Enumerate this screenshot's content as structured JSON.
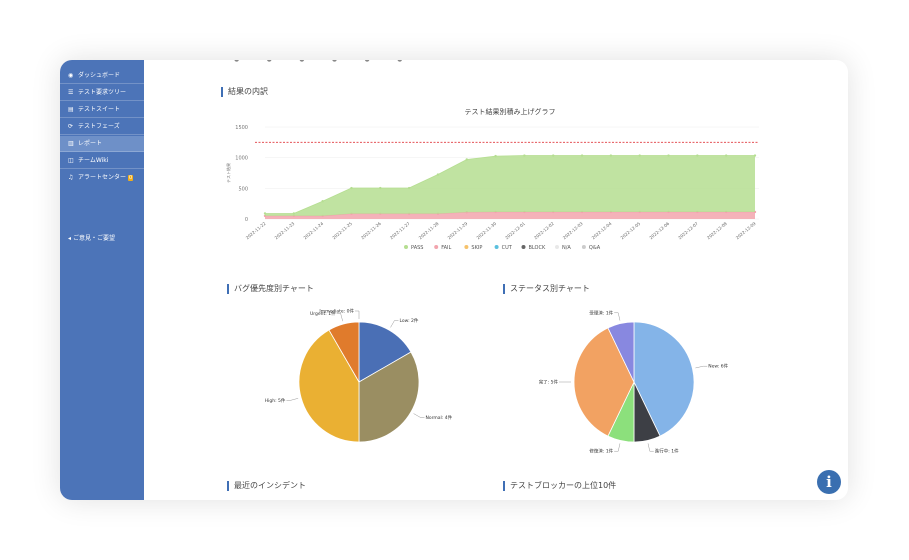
{
  "sidebar": {
    "items": [
      {
        "icon": "dashboard-icon",
        "glyph": "◉",
        "label": "ダッシュボード"
      },
      {
        "icon": "list-icon",
        "glyph": "☰",
        "label": "テスト要求ツリー"
      },
      {
        "icon": "document-icon",
        "glyph": "▤",
        "label": "テストスイート"
      },
      {
        "icon": "cycle-icon",
        "glyph": "⟳",
        "label": "テストフェーズ"
      },
      {
        "icon": "chart-icon",
        "glyph": "▥",
        "label": "レポート"
      },
      {
        "icon": "wiki-icon",
        "glyph": "◫",
        "label": "チームWiki"
      },
      {
        "icon": "alert-icon",
        "glyph": "♫",
        "label": "アラートセンター",
        "badge": "0"
      }
    ],
    "feedback": {
      "icon": "megaphone-icon",
      "glyph": "◂",
      "label": "ご意見・ご要望"
    }
  },
  "sections": {
    "results": "結果の内訳",
    "bug_priority": "バグ優先度別チャート",
    "status": "ステータス別チャート",
    "incidents": "最近のインシデント",
    "blockers": "テストブロッカーの上位10件"
  },
  "info_button": {
    "glyph": "i"
  },
  "colors": {
    "sidebar": "#4c74b8",
    "accent": "#3f6fb5",
    "pass": "#b5de91",
    "fail": "#f2a4ad",
    "target_line": "#e0393e"
  },
  "chart_data": [
    {
      "type": "area",
      "title": "テスト結果別積み上げグラフ",
      "ylabel": "テスト結果",
      "ylim": [
        0,
        1500
      ],
      "yticks": [
        "0",
        "500",
        "1000",
        "1500"
      ],
      "target_line": 1250,
      "x": [
        "2022-11-22",
        "2022-11-23",
        "2022-11-24",
        "2022-11-25",
        "2022-11-26",
        "2022-11-27",
        "2022-11-28",
        "2022-11-29",
        "2022-11-30",
        "2022-12-01",
        "2022-12-02",
        "2022-12-03",
        "2022-12-04",
        "2022-12-05",
        "2022-12-06",
        "2022-12-07",
        "2022-12-08",
        "2022-12-09"
      ],
      "series": [
        {
          "name": "PASS",
          "color": "#b5de91",
          "values": [
            40,
            40,
            240,
            420,
            420,
            420,
            640,
            860,
            910,
            920,
            920,
            920,
            920,
            920,
            920,
            920,
            920,
            920
          ]
        },
        {
          "name": "FAIL",
          "color": "#f2a4ad",
          "values": [
            50,
            50,
            50,
            85,
            85,
            85,
            85,
            110,
            115,
            115,
            115,
            115,
            115,
            115,
            115,
            115,
            115,
            115
          ]
        },
        {
          "name": "SKIP",
          "color": "#f6c26b",
          "values": [
            0,
            0,
            0,
            0,
            0,
            0,
            0,
            0,
            0,
            0,
            0,
            0,
            0,
            0,
            0,
            0,
            0,
            0
          ]
        },
        {
          "name": "CUT",
          "color": "#5bc0de",
          "values": [
            0,
            0,
            0,
            0,
            0,
            0,
            0,
            0,
            0,
            0,
            0,
            0,
            0,
            0,
            0,
            0,
            0,
            0
          ]
        },
        {
          "name": "BLOCK",
          "color": "#666666",
          "values": [
            0,
            0,
            0,
            0,
            0,
            0,
            0,
            0,
            0,
            0,
            0,
            0,
            0,
            0,
            0,
            0,
            0,
            0
          ]
        },
        {
          "name": "N/A",
          "color": "#e8e8e8",
          "values": [
            0,
            0,
            0,
            0,
            0,
            0,
            0,
            0,
            0,
            0,
            0,
            0,
            0,
            0,
            0,
            0,
            0,
            0
          ]
        },
        {
          "name": "Q&A",
          "color": "#cccccc",
          "values": [
            0,
            0,
            0,
            0,
            0,
            0,
            0,
            0,
            0,
            0,
            0,
            0,
            0,
            0,
            0,
            0,
            0,
            0
          ]
        }
      ]
    },
    {
      "type": "pie",
      "slices": [
        {
          "label": "Low: 2件",
          "value": 2,
          "color": "#4a6fb5"
        },
        {
          "label": "Normal: 4件",
          "value": 4,
          "color": "#9a8e62"
        },
        {
          "label": "High: 5件",
          "value": 5,
          "color": "#eab033"
        },
        {
          "label": "Urgent: 1件",
          "value": 1,
          "color": "#e07b2c"
        },
        {
          "label": "Immediate: 0件",
          "value": 0,
          "color": "#c0392b"
        }
      ]
    },
    {
      "type": "pie",
      "slices": [
        {
          "label": "New: 6件",
          "value": 6,
          "color": "#84b4e8"
        },
        {
          "label": "進行中: 1件",
          "value": 1,
          "color": "#3d3f45"
        },
        {
          "label": "修復済: 1件",
          "value": 1,
          "color": "#8ce07c"
        },
        {
          "label": "完了: 5件",
          "value": 5,
          "color": "#f2a262"
        },
        {
          "label": "受理済: 1件",
          "value": 1,
          "color": "#8888e0"
        }
      ]
    }
  ]
}
